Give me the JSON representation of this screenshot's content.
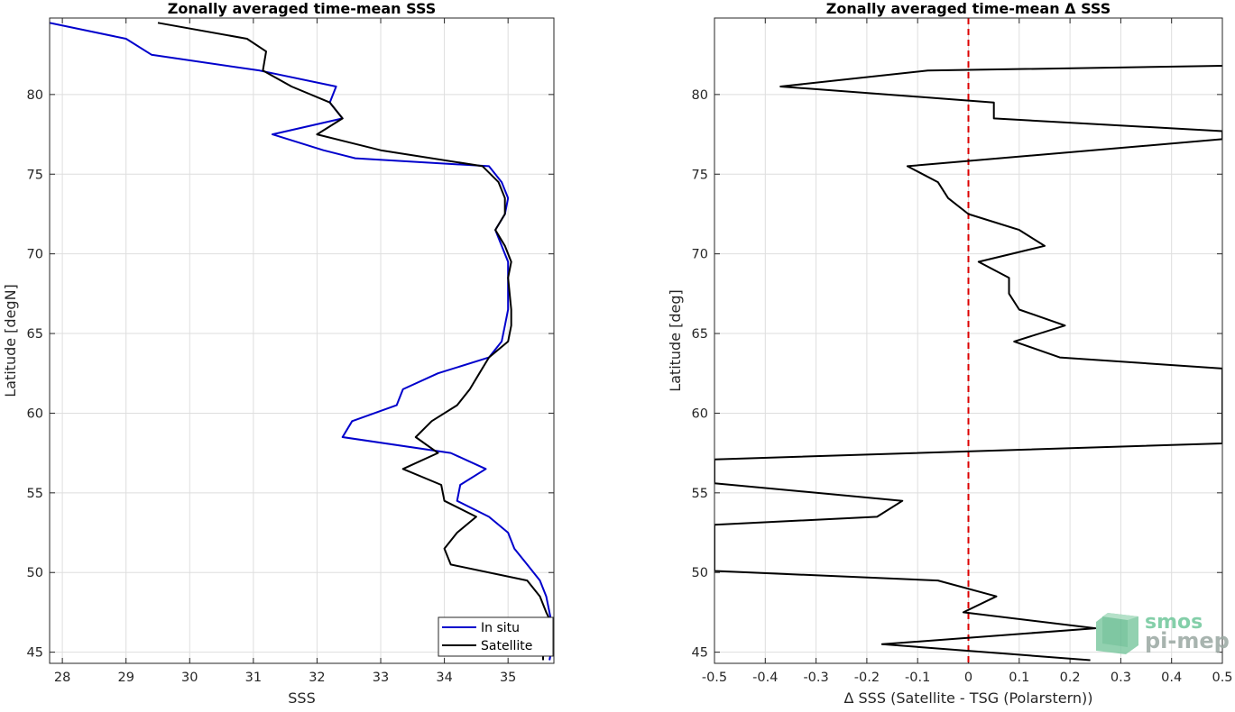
{
  "chart_data": [
    {
      "type": "line",
      "title": "Zonally averaged time-mean SSS",
      "xlabel": "SSS",
      "ylabel": "Latitude [degN]",
      "xlim": [
        27.8,
        35.72
      ],
      "ylim": [
        44.3,
        84.8
      ],
      "xticks": [
        "28",
        "29",
        "30",
        "31",
        "32",
        "33",
        "34",
        "35"
      ],
      "yticks": [
        "45",
        "50",
        "55",
        "60",
        "65",
        "70",
        "75",
        "80"
      ],
      "grid": true,
      "legend": "bottom-right",
      "series": [
        {
          "name": "In situ",
          "color": "#0000cc",
          "points": [
            [
              27.8,
              84.5
            ],
            [
              29.0,
              83.5
            ],
            [
              29.4,
              82.5
            ],
            [
              31.1,
              81.5
            ],
            [
              32.3,
              80.5
            ],
            [
              32.2,
              79.5
            ],
            [
              32.4,
              78.5
            ],
            [
              31.3,
              77.5
            ],
            [
              32.1,
              76.5
            ],
            [
              32.6,
              76.0
            ],
            [
              34.7,
              75.5
            ],
            [
              34.9,
              74.5
            ],
            [
              35.0,
              73.5
            ],
            [
              34.95,
              72.5
            ],
            [
              34.8,
              71.5
            ],
            [
              34.9,
              70.5
            ],
            [
              35.0,
              69.5
            ],
            [
              35.0,
              68.5
            ],
            [
              35.0,
              66.5
            ],
            [
              34.95,
              65.5
            ],
            [
              34.9,
              64.5
            ],
            [
              34.7,
              63.5
            ],
            [
              33.9,
              62.5
            ],
            [
              33.35,
              61.5
            ],
            [
              33.25,
              60.5
            ],
            [
              32.55,
              59.5
            ],
            [
              32.4,
              58.5
            ],
            [
              34.1,
              57.5
            ],
            [
              34.65,
              56.5
            ],
            [
              34.25,
              55.5
            ],
            [
              34.2,
              54.5
            ],
            [
              34.7,
              53.5
            ],
            [
              35.0,
              52.5
            ],
            [
              35.1,
              51.5
            ],
            [
              35.3,
              50.5
            ],
            [
              35.5,
              49.5
            ],
            [
              35.6,
              48.5
            ],
            [
              35.65,
              47.5
            ],
            [
              35.7,
              46.5
            ],
            [
              35.7,
              45.5
            ],
            [
              35.65,
              44.5
            ]
          ]
        },
        {
          "name": "Satellite",
          "color": "#000000",
          "points": [
            [
              29.5,
              84.5
            ],
            [
              30.9,
              83.5
            ],
            [
              31.2,
              82.7
            ],
            [
              31.15,
              81.5
            ],
            [
              31.6,
              80.5
            ],
            [
              32.2,
              79.5
            ],
            [
              32.4,
              78.5
            ],
            [
              32.0,
              77.5
            ],
            [
              33.0,
              76.5
            ],
            [
              34.6,
              75.5
            ],
            [
              34.85,
              74.5
            ],
            [
              34.95,
              73.5
            ],
            [
              34.95,
              72.5
            ],
            [
              34.8,
              71.5
            ],
            [
              34.95,
              70.5
            ],
            [
              35.05,
              69.5
            ],
            [
              35.0,
              68.5
            ],
            [
              35.05,
              66.5
            ],
            [
              35.05,
              65.5
            ],
            [
              35.0,
              64.5
            ],
            [
              34.7,
              63.5
            ],
            [
              34.55,
              62.5
            ],
            [
              34.4,
              61.5
            ],
            [
              34.2,
              60.5
            ],
            [
              33.8,
              59.5
            ],
            [
              33.55,
              58.5
            ],
            [
              33.9,
              57.5
            ],
            [
              33.35,
              56.5
            ],
            [
              33.95,
              55.5
            ],
            [
              34.0,
              54.5
            ],
            [
              34.5,
              53.5
            ],
            [
              34.2,
              52.5
            ],
            [
              34.0,
              51.5
            ],
            [
              34.1,
              50.5
            ],
            [
              35.3,
              49.5
            ],
            [
              35.5,
              48.5
            ],
            [
              35.6,
              47.5
            ],
            [
              35.72,
              46.5
            ],
            [
              35.55,
              45.5
            ],
            [
              35.55,
              44.5
            ]
          ]
        }
      ]
    },
    {
      "type": "line",
      "title": "Zonally averaged time-mean Δ SSS",
      "xlabel": "Δ SSS (Satellite - TSG (Polarstern))",
      "ylabel": "Latitude [deg]",
      "xlim": [
        -0.5,
        0.5
      ],
      "ylim": [
        44.3,
        84.8
      ],
      "xticks": [
        "-0.5",
        "-0.4",
        "-0.3",
        "-0.2",
        "-0.1",
        "0",
        "0.1",
        "0.2",
        "0.3",
        "0.4",
        "0.5"
      ],
      "yticks": [
        "45",
        "50",
        "55",
        "60",
        "65",
        "70",
        "75",
        "80"
      ],
      "grid": true,
      "reference_line": {
        "x": 0,
        "color": "#dd0000",
        "style": "dashed"
      },
      "series": [
        {
          "color": "#000000",
          "points": [
            [
              0.5,
              81.8
            ],
            [
              -0.08,
              81.5
            ],
            [
              -0.37,
              80.5
            ],
            [
              0.05,
              79.5
            ],
            [
              0.05,
              78.5
            ],
            [
              0.5,
              77.7
            ],
            [
              0.5,
              77.2
            ],
            [
              -0.12,
              75.5
            ],
            [
              -0.06,
              74.5
            ],
            [
              -0.04,
              73.5
            ],
            [
              0.0,
              72.5
            ],
            [
              0.1,
              71.5
            ],
            [
              0.15,
              70.5
            ],
            [
              0.02,
              69.5
            ],
            [
              0.08,
              68.5
            ],
            [
              0.08,
              67.5
            ],
            [
              0.1,
              66.5
            ],
            [
              0.19,
              65.5
            ],
            [
              0.09,
              64.5
            ],
            [
              0.18,
              63.5
            ],
            [
              0.5,
              62.8
            ],
            [
              0.5,
              58.1
            ],
            [
              -0.5,
              57.1
            ],
            [
              -0.5,
              55.6
            ],
            [
              -0.13,
              54.5
            ],
            [
              -0.18,
              53.5
            ],
            [
              -0.5,
              53.0
            ],
            [
              -0.5,
              50.1
            ],
            [
              -0.06,
              49.5
            ],
            [
              0.055,
              48.5
            ],
            [
              -0.01,
              47.5
            ],
            [
              0.25,
              46.5
            ],
            [
              -0.17,
              45.5
            ],
            [
              0.24,
              44.5
            ]
          ]
        }
      ]
    }
  ],
  "watermark": {
    "line1": "smos",
    "line2": "pi-mep"
  }
}
